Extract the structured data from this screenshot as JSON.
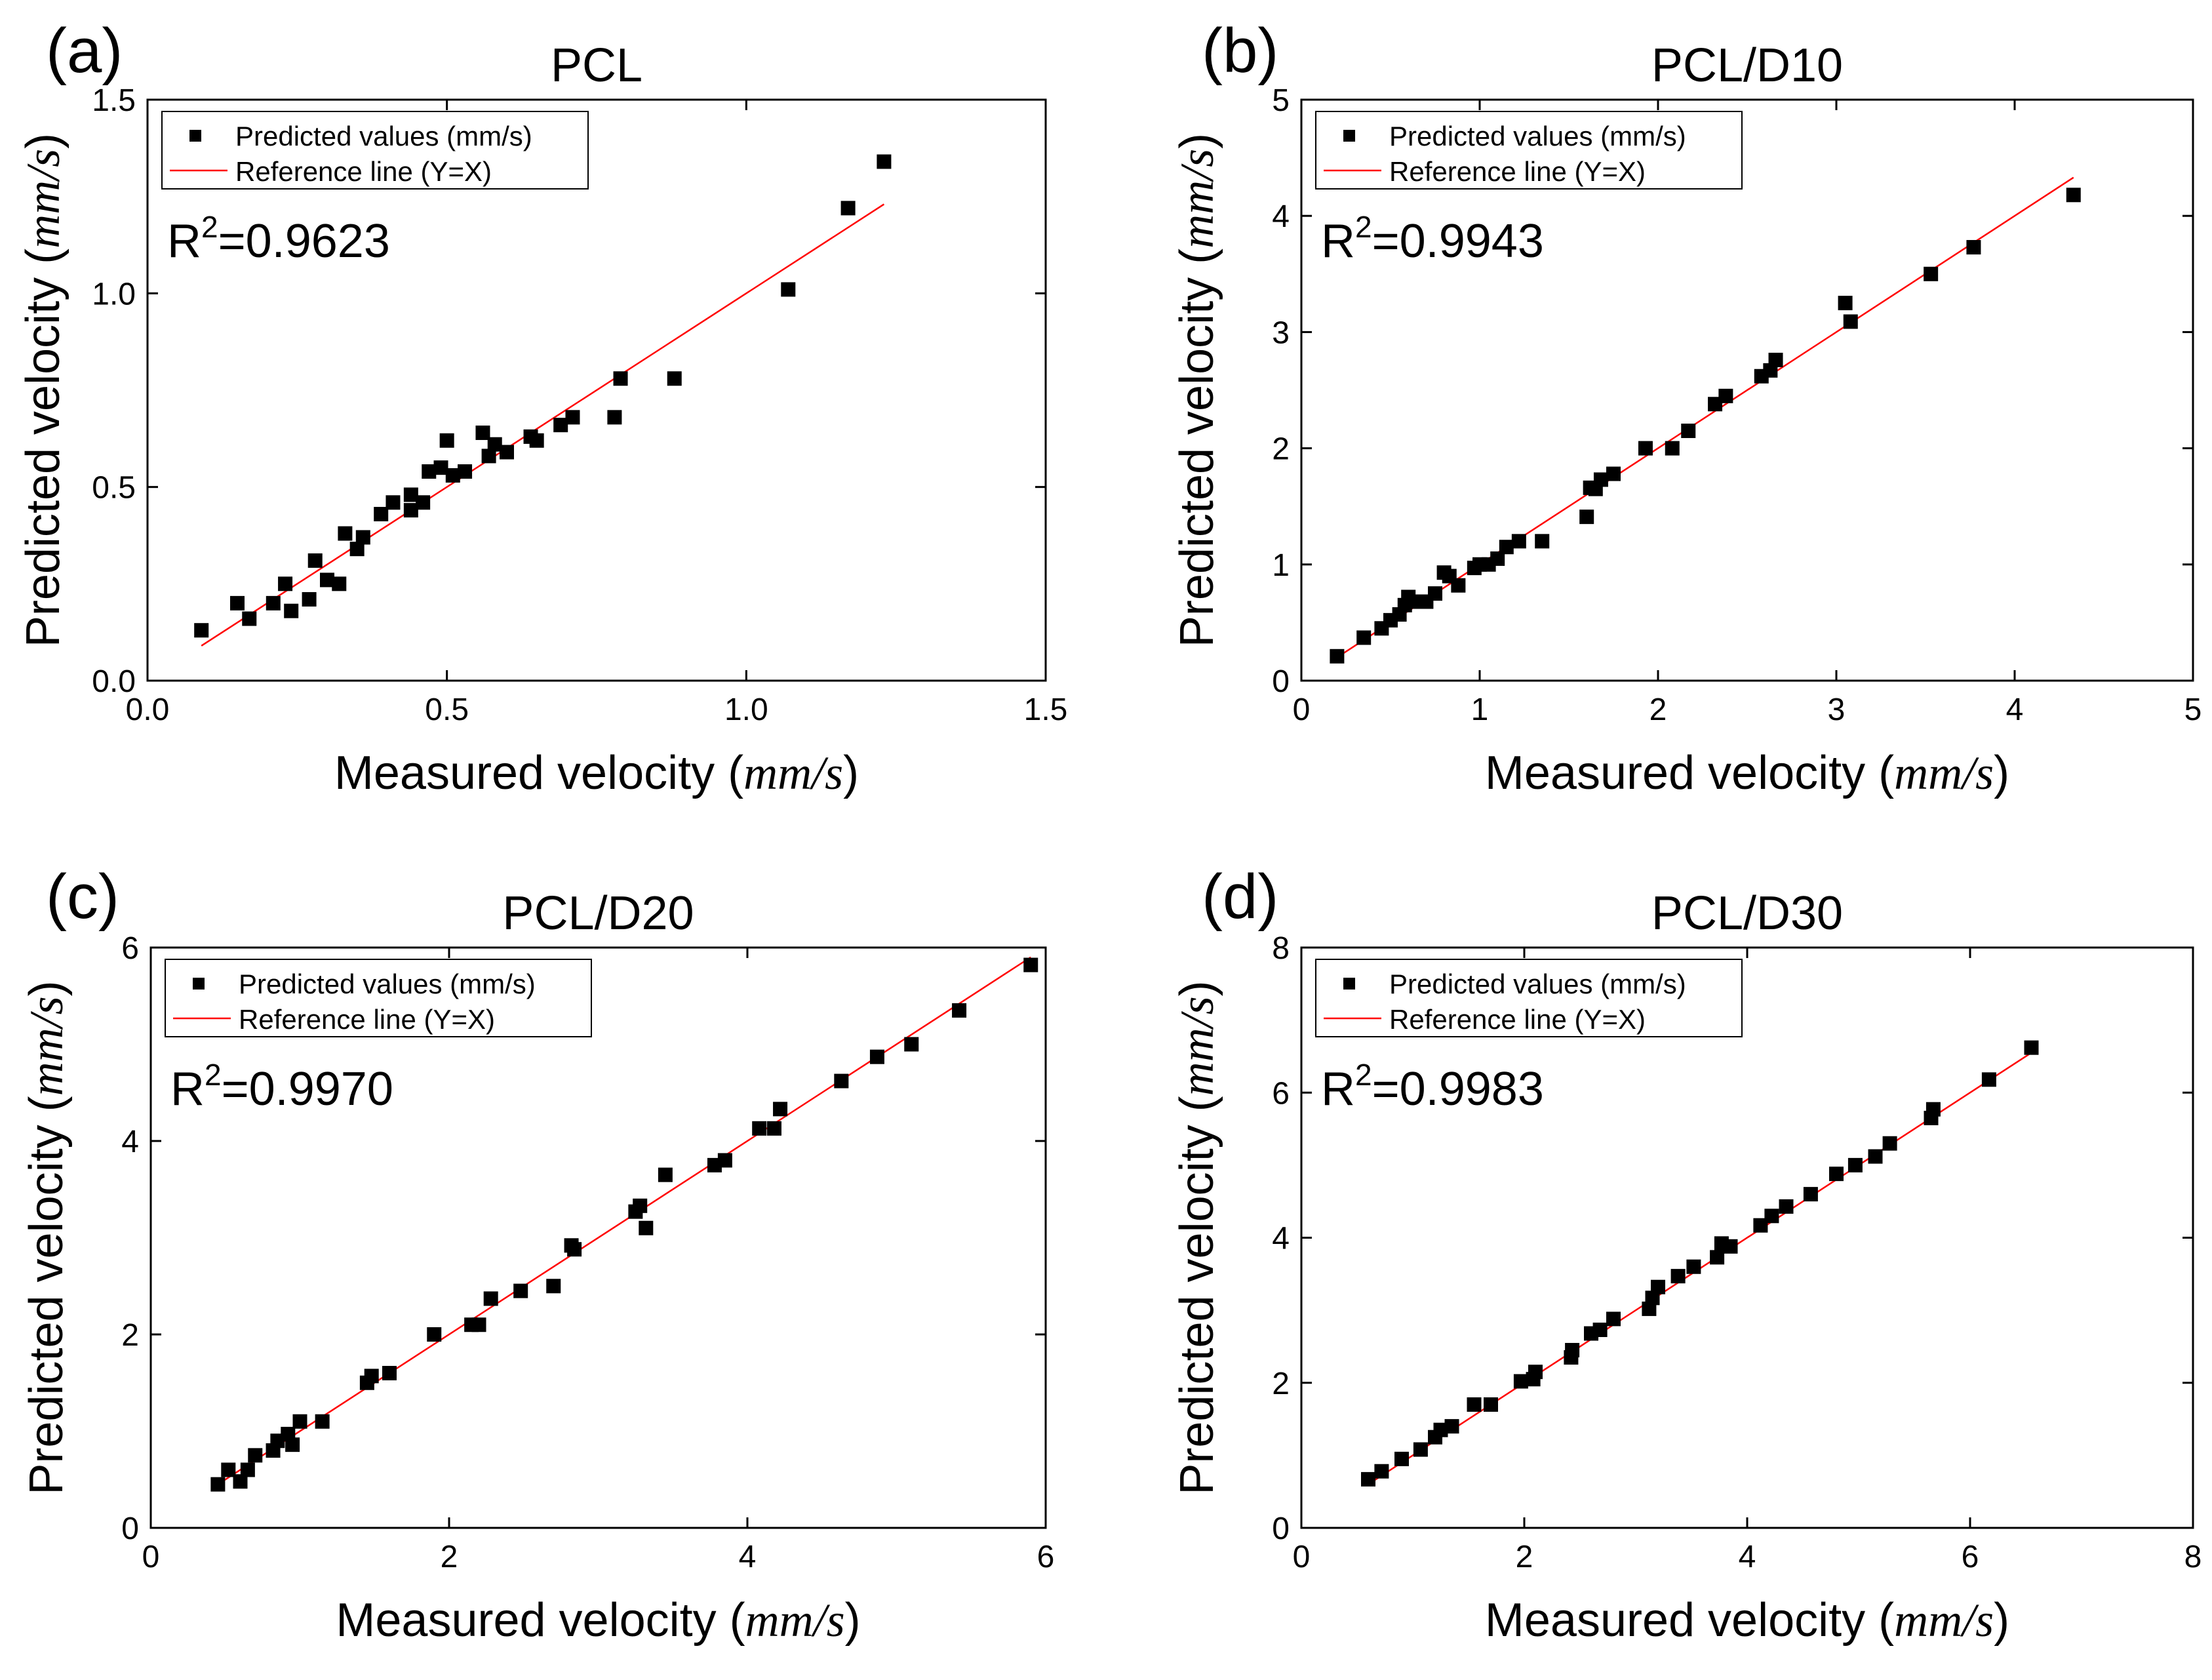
{
  "colors": {
    "points": "#000000",
    "reference_line": "#ff0000",
    "axes": "#000000",
    "background": "#ffffff"
  },
  "legend": {
    "points_label": "Predicted values (mm/s)",
    "line_label": "Reference line (Y=X)"
  },
  "axis_labels": {
    "x_text": "Measured velocity ",
    "y_text": "Predicted velocity ",
    "unit_open": "(",
    "unit": "mm/s",
    "unit_close": ")"
  },
  "chart_data": [
    {
      "panel": "(a)",
      "type": "scatter",
      "title": "PCL",
      "xlabel": "Measured velocity (mm/s)",
      "ylabel": "Predicted velocity (mm/s)",
      "xlim": [
        0,
        1.5
      ],
      "ylim": [
        0,
        1.5
      ],
      "xticks": [
        "0.0",
        "0.5",
        "1.0",
        "1.5"
      ],
      "yticks": [
        "0.0",
        "0.5",
        "1.0",
        "1.5"
      ],
      "r2_base": "R",
      "r2_exp": "2",
      "r2_value": "=0.9623",
      "reference_line": [
        [
          0.09,
          0.09
        ],
        [
          1.23,
          1.23
        ]
      ],
      "series": [
        {
          "name": "Predicted values (mm/s)",
          "points": [
            [
              0.09,
              0.13
            ],
            [
              0.15,
              0.2
            ],
            [
              0.17,
              0.16
            ],
            [
              0.21,
              0.2
            ],
            [
              0.23,
              0.25
            ],
            [
              0.24,
              0.18
            ],
            [
              0.27,
              0.21
            ],
            [
              0.28,
              0.31
            ],
            [
              0.3,
              0.26
            ],
            [
              0.32,
              0.25
            ],
            [
              0.33,
              0.38
            ],
            [
              0.35,
              0.34
            ],
            [
              0.36,
              0.37
            ],
            [
              0.39,
              0.43
            ],
            [
              0.41,
              0.46
            ],
            [
              0.44,
              0.48
            ],
            [
              0.44,
              0.44
            ],
            [
              0.46,
              0.46
            ],
            [
              0.47,
              0.54
            ],
            [
              0.49,
              0.55
            ],
            [
              0.5,
              0.62
            ],
            [
              0.51,
              0.53
            ],
            [
              0.53,
              0.54
            ],
            [
              0.56,
              0.64
            ],
            [
              0.57,
              0.58
            ],
            [
              0.58,
              0.61
            ],
            [
              0.6,
              0.59
            ],
            [
              0.64,
              0.63
            ],
            [
              0.65,
              0.62
            ],
            [
              0.69,
              0.66
            ],
            [
              0.71,
              0.68
            ],
            [
              0.78,
              0.68
            ],
            [
              0.79,
              0.78
            ],
            [
              0.88,
              0.78
            ],
            [
              1.07,
              1.01
            ],
            [
              1.17,
              1.22
            ],
            [
              1.23,
              1.34
            ]
          ]
        }
      ]
    },
    {
      "panel": "(b)",
      "type": "scatter",
      "title": "PCL/D10",
      "xlabel": "Measured velocity (mm/s)",
      "ylabel": "Predicted velocity (mm/s)",
      "xlim": [
        0,
        5
      ],
      "ylim": [
        0,
        5
      ],
      "xticks": [
        "0",
        "1",
        "2",
        "3",
        "4",
        "5"
      ],
      "yticks": [
        "0",
        "1",
        "2",
        "3",
        "4",
        "5"
      ],
      "r2_base": "R",
      "r2_exp": "2",
      "r2_value": "=0.9943",
      "reference_line": [
        [
          0.2,
          0.2
        ],
        [
          4.33,
          4.33
        ]
      ],
      "series": [
        {
          "name": "Predicted values (mm/s)",
          "points": [
            [
              0.2,
              0.21
            ],
            [
              0.35,
              0.37
            ],
            [
              0.45,
              0.45
            ],
            [
              0.5,
              0.52
            ],
            [
              0.55,
              0.57
            ],
            [
              0.58,
              0.65
            ],
            [
              0.6,
              0.72
            ],
            [
              0.65,
              0.68
            ],
            [
              0.7,
              0.68
            ],
            [
              0.75,
              0.75
            ],
            [
              0.8,
              0.93
            ],
            [
              0.83,
              0.9
            ],
            [
              0.88,
              0.82
            ],
            [
              0.97,
              0.97
            ],
            [
              1.0,
              1.0
            ],
            [
              1.05,
              1.0
            ],
            [
              1.1,
              1.05
            ],
            [
              1.15,
              1.15
            ],
            [
              1.22,
              1.2
            ],
            [
              1.35,
              1.2
            ],
            [
              1.6,
              1.41
            ],
            [
              1.62,
              1.66
            ],
            [
              1.65,
              1.65
            ],
            [
              1.68,
              1.73
            ],
            [
              1.75,
              1.78
            ],
            [
              1.93,
              2.0
            ],
            [
              2.08,
              2.0
            ],
            [
              2.17,
              2.15
            ],
            [
              2.32,
              2.38
            ],
            [
              2.38,
              2.45
            ],
            [
              2.58,
              2.62
            ],
            [
              2.63,
              2.67
            ],
            [
              2.66,
              2.76
            ],
            [
              3.05,
              3.25
            ],
            [
              3.08,
              3.09
            ],
            [
              3.53,
              3.5
            ],
            [
              3.77,
              3.73
            ],
            [
              4.33,
              4.18
            ]
          ]
        }
      ]
    },
    {
      "panel": "(c)",
      "type": "scatter",
      "title": "PCL/D20",
      "xlabel": "Measured velocity (mm/s)",
      "ylabel": "Predicted velocity (mm/s)",
      "xlim": [
        0,
        6
      ],
      "ylim": [
        0,
        6
      ],
      "xticks": [
        "0",
        "2",
        "4",
        "6"
      ],
      "yticks": [
        "0",
        "2",
        "4",
        "6"
      ],
      "r2_base": "R",
      "r2_exp": "2",
      "r2_value": "=0.9970",
      "reference_line": [
        [
          0.42,
          0.42
        ],
        [
          5.9,
          5.9
        ]
      ],
      "series": [
        {
          "name": "Predicted values (mm/s)",
          "points": [
            [
              0.45,
              0.45
            ],
            [
              0.52,
              0.6
            ],
            [
              0.6,
              0.48
            ],
            [
              0.65,
              0.6
            ],
            [
              0.7,
              0.75
            ],
            [
              0.82,
              0.8
            ],
            [
              0.85,
              0.9
            ],
            [
              0.92,
              0.97
            ],
            [
              0.95,
              0.86
            ],
            [
              1.0,
              1.1
            ],
            [
              1.15,
              1.1
            ],
            [
              1.45,
              1.5
            ],
            [
              1.48,
              1.57
            ],
            [
              1.6,
              1.6
            ],
            [
              1.9,
              2.0
            ],
            [
              2.15,
              2.1
            ],
            [
              2.2,
              2.1
            ],
            [
              2.28,
              2.37
            ],
            [
              2.48,
              2.45
            ],
            [
              2.7,
              2.5
            ],
            [
              2.82,
              2.92
            ],
            [
              2.84,
              2.88
            ],
            [
              3.25,
              3.27
            ],
            [
              3.28,
              3.33
            ],
            [
              3.32,
              3.1
            ],
            [
              3.45,
              3.65
            ],
            [
              3.78,
              3.75
            ],
            [
              3.85,
              3.8
            ],
            [
              4.08,
              4.13
            ],
            [
              4.18,
              4.13
            ],
            [
              4.22,
              4.33
            ],
            [
              4.63,
              4.62
            ],
            [
              4.87,
              4.87
            ],
            [
              5.1,
              5.0
            ],
            [
              5.42,
              5.35
            ],
            [
              5.9,
              5.82
            ]
          ]
        }
      ]
    },
    {
      "panel": "(d)",
      "type": "scatter",
      "title": "PCL/D30",
      "xlabel": "Measured velocity (mm/s)",
      "ylabel": "Predicted velocity (mm/s)",
      "xlim": [
        0,
        8
      ],
      "ylim": [
        0,
        8
      ],
      "xticks": [
        "0",
        "2",
        "4",
        "6",
        "8"
      ],
      "yticks": [
        "0",
        "2",
        "4",
        "6",
        "8"
      ],
      "r2_base": "R",
      "r2_exp": "2",
      "r2_value": "=0.9983",
      "reference_line": [
        [
          0.6,
          0.6
        ],
        [
          6.55,
          6.55
        ]
      ],
      "series": [
        {
          "name": "Predicted values (mm/s)",
          "points": [
            [
              0.6,
              0.67
            ],
            [
              0.72,
              0.78
            ],
            [
              0.9,
              0.95
            ],
            [
              1.07,
              1.08
            ],
            [
              1.2,
              1.25
            ],
            [
              1.25,
              1.35
            ],
            [
              1.35,
              1.4
            ],
            [
              1.55,
              1.7
            ],
            [
              1.7,
              1.7
            ],
            [
              1.97,
              2.02
            ],
            [
              2.08,
              2.05
            ],
            [
              2.1,
              2.15
            ],
            [
              2.42,
              2.35
            ],
            [
              2.43,
              2.45
            ],
            [
              2.6,
              2.68
            ],
            [
              2.68,
              2.73
            ],
            [
              2.8,
              2.88
            ],
            [
              3.12,
              3.02
            ],
            [
              3.15,
              3.17
            ],
            [
              3.2,
              3.32
            ],
            [
              3.38,
              3.47
            ],
            [
              3.52,
              3.6
            ],
            [
              3.73,
              3.73
            ],
            [
              3.77,
              3.92
            ],
            [
              3.85,
              3.88
            ],
            [
              4.12,
              4.17
            ],
            [
              4.22,
              4.3
            ],
            [
              4.35,
              4.43
            ],
            [
              4.57,
              4.6
            ],
            [
              4.8,
              4.88
            ],
            [
              4.97,
              5.0
            ],
            [
              5.15,
              5.12
            ],
            [
              5.28,
              5.3
            ],
            [
              5.65,
              5.65
            ],
            [
              5.67,
              5.77
            ],
            [
              6.17,
              6.18
            ],
            [
              6.55,
              6.62
            ]
          ]
        }
      ]
    }
  ]
}
